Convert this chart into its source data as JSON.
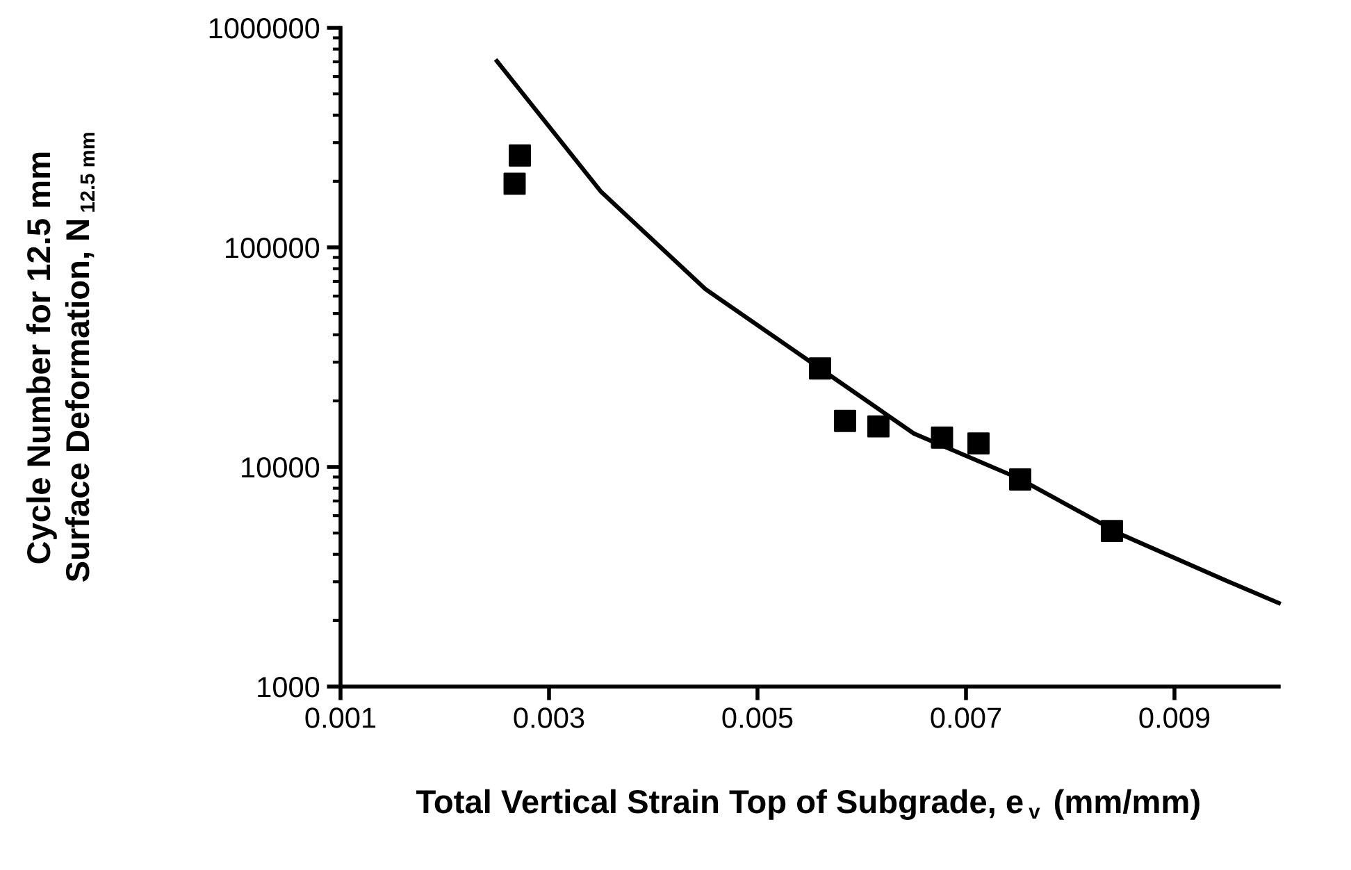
{
  "chart_data": {
    "type": "scatter",
    "xlabel": "Total Vertical Strain Top of Subgrade, e$_{v}$ (mm/mm)",
    "ylabel": "Cycle Number for 12.5 mm\nSurface Deformation, N$_{12.5 mm}$",
    "log": "y",
    "xlim": [
      0.001,
      0.01
    ],
    "xticks": [
      {
        "value": 0.001,
        "label": "0.001"
      },
      {
        "value": 0.003,
        "label": "0.003"
      },
      {
        "value": 0.005,
        "label": "0.005"
      },
      {
        "value": 0.007,
        "label": "0.007"
      },
      {
        "value": 0.009,
        "label": "0.009"
      }
    ],
    "ylim": [
      1000,
      1000000
    ],
    "yticks": [
      1000,
      10000,
      100000,
      1000000
    ],
    "grid": false,
    "legend": false,
    "series": [
      {
        "type": "line",
        "color": "#000000",
        "marker": "none",
        "line_style": "solid",
        "x": [
          0.0025,
          0.0035,
          0.0045,
          0.0055,
          0.0065,
          0.0075,
          0.0085,
          0.0095,
          0.01
        ],
        "values": [
          705000,
          179000,
          64600,
          30300,
          14200,
          8900,
          4900,
          3030,
          2400
        ]
      },
      {
        "color": "#000000",
        "marker": "square",
        "x": [
          0.00267,
          0.00272,
          0.0056,
          0.00584,
          0.00616,
          0.00677,
          0.00712,
          0.00752,
          0.0084
        ],
        "values": [
          195000,
          262000,
          28100,
          16200,
          15300,
          13600,
          12800,
          8770,
          5110
        ]
      }
    ]
  }
}
